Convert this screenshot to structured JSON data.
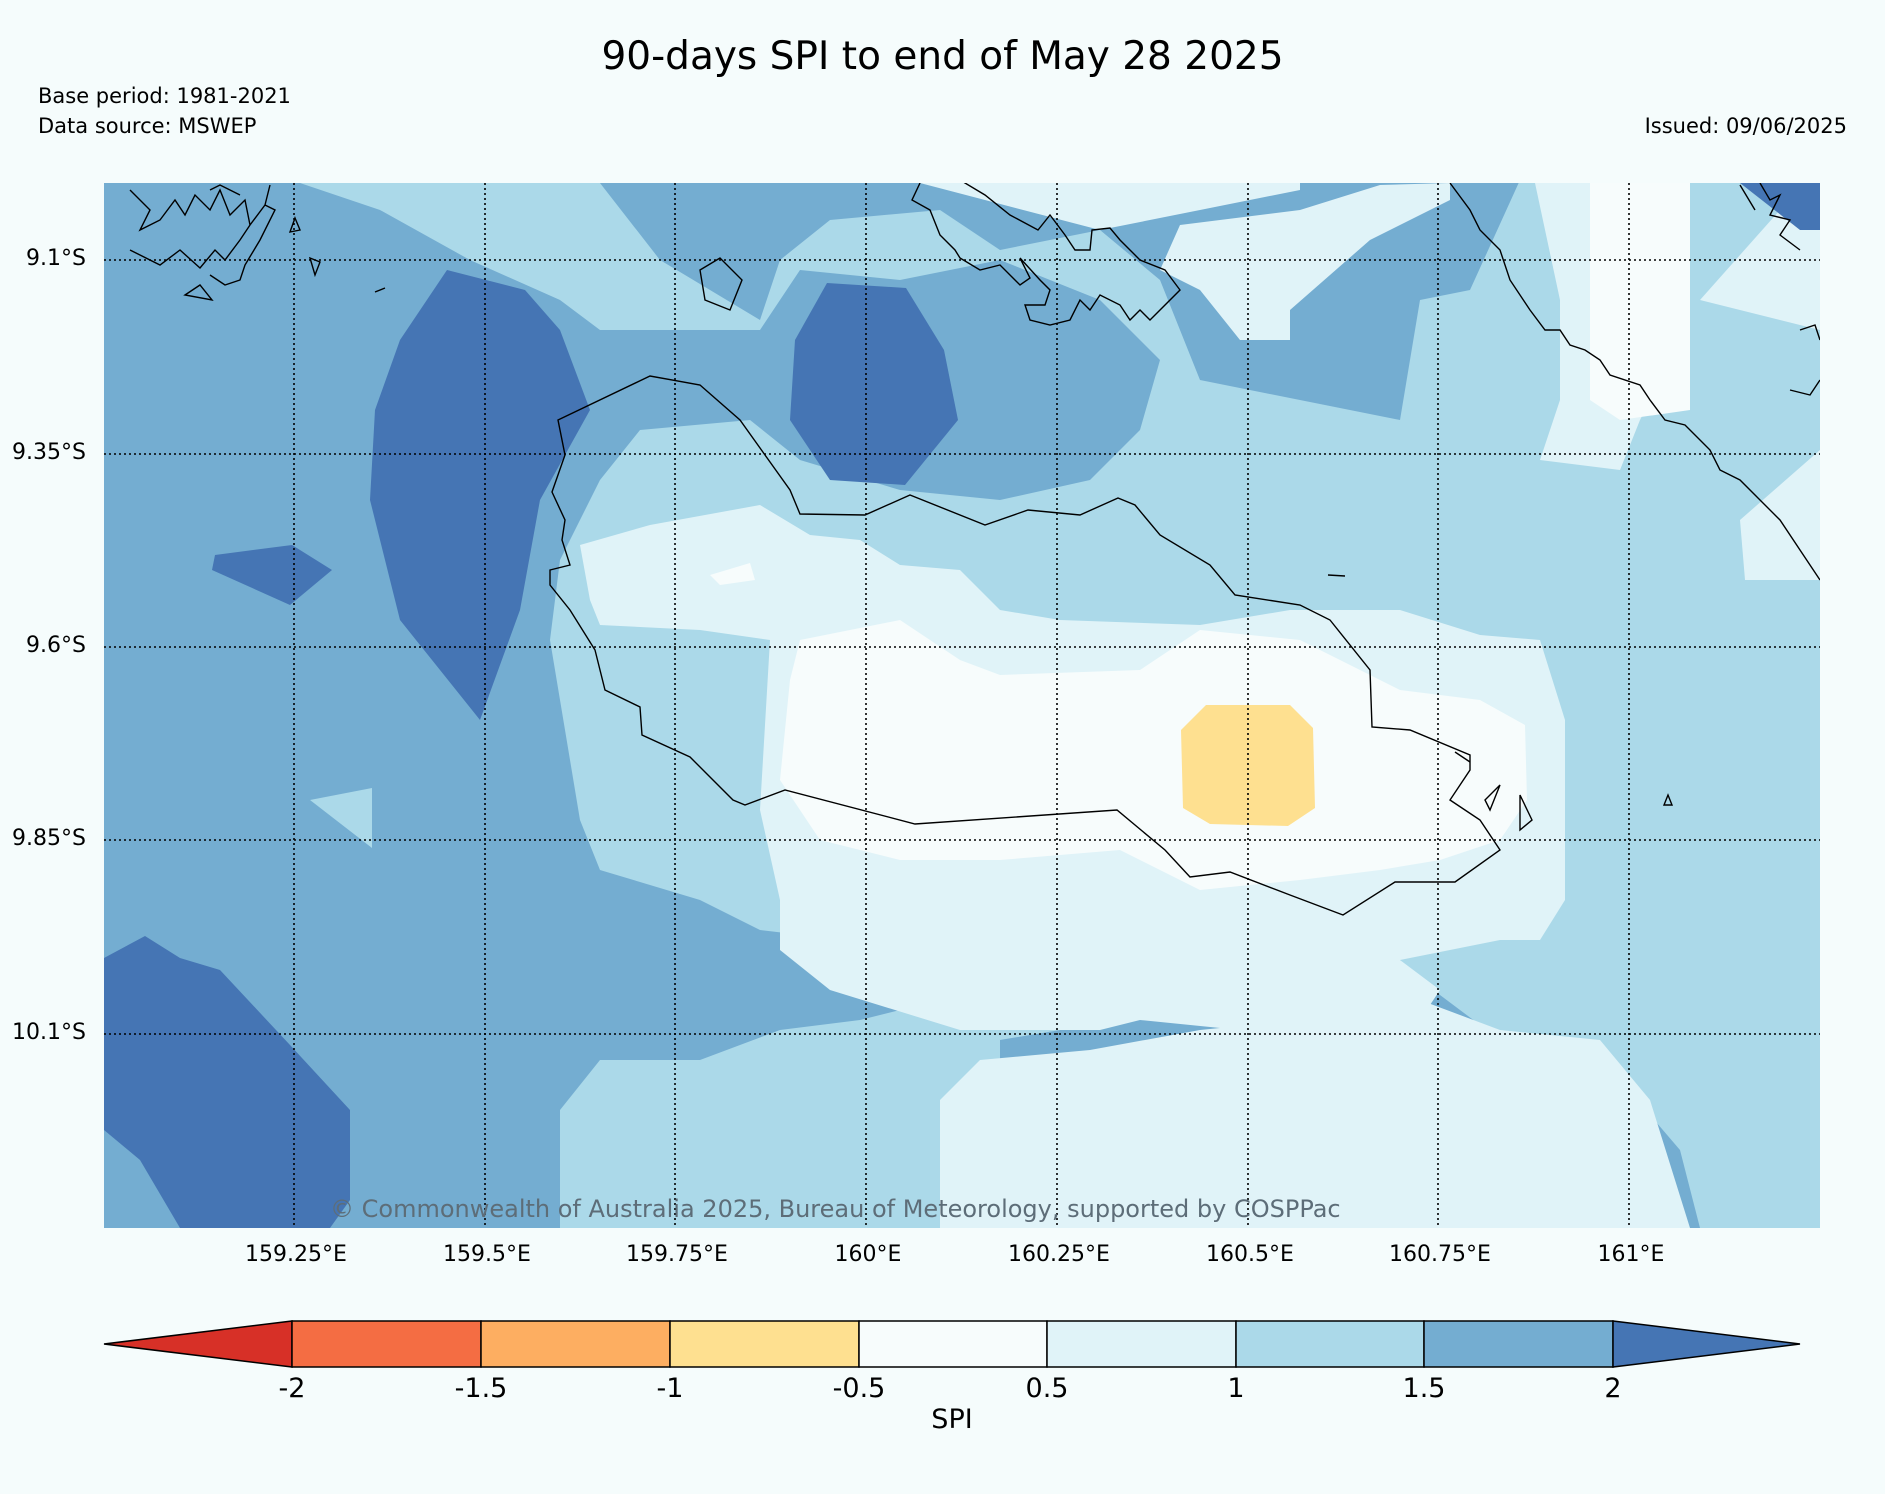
{
  "header": {
    "title": "90-days SPI to end of May 28 2025",
    "base_period": "Base period: 1981-2021",
    "data_source": "Data source: MSWEP",
    "issued": "Issued: 09/06/2025"
  },
  "map": {
    "lat_labels": [
      "9.1°S",
      "9.35°S",
      "9.6°S",
      "9.85°S",
      "10.1°S"
    ],
    "lon_labels": [
      "159.25°E",
      "159.5°E",
      "159.75°E",
      "160°E",
      "160.25°E",
      "160.5°E",
      "160.75°E",
      "161°E"
    ],
    "copyright": "© Commonwealth of Australia 2025, Bureau of Meteorology, supported by COSPPac"
  },
  "colorbar": {
    "label": "SPI",
    "ticks": [
      "-2",
      "-1.5",
      "-1",
      "-0.5",
      "0.5",
      "1",
      "1.5",
      "2"
    ],
    "colors": [
      "#d73027",
      "#f46d43",
      "#fdae61",
      "#fee090",
      "#f7fcfc",
      "#e0f3f8",
      "#abd9e9",
      "#74add1",
      "#4575b4"
    ]
  }
}
